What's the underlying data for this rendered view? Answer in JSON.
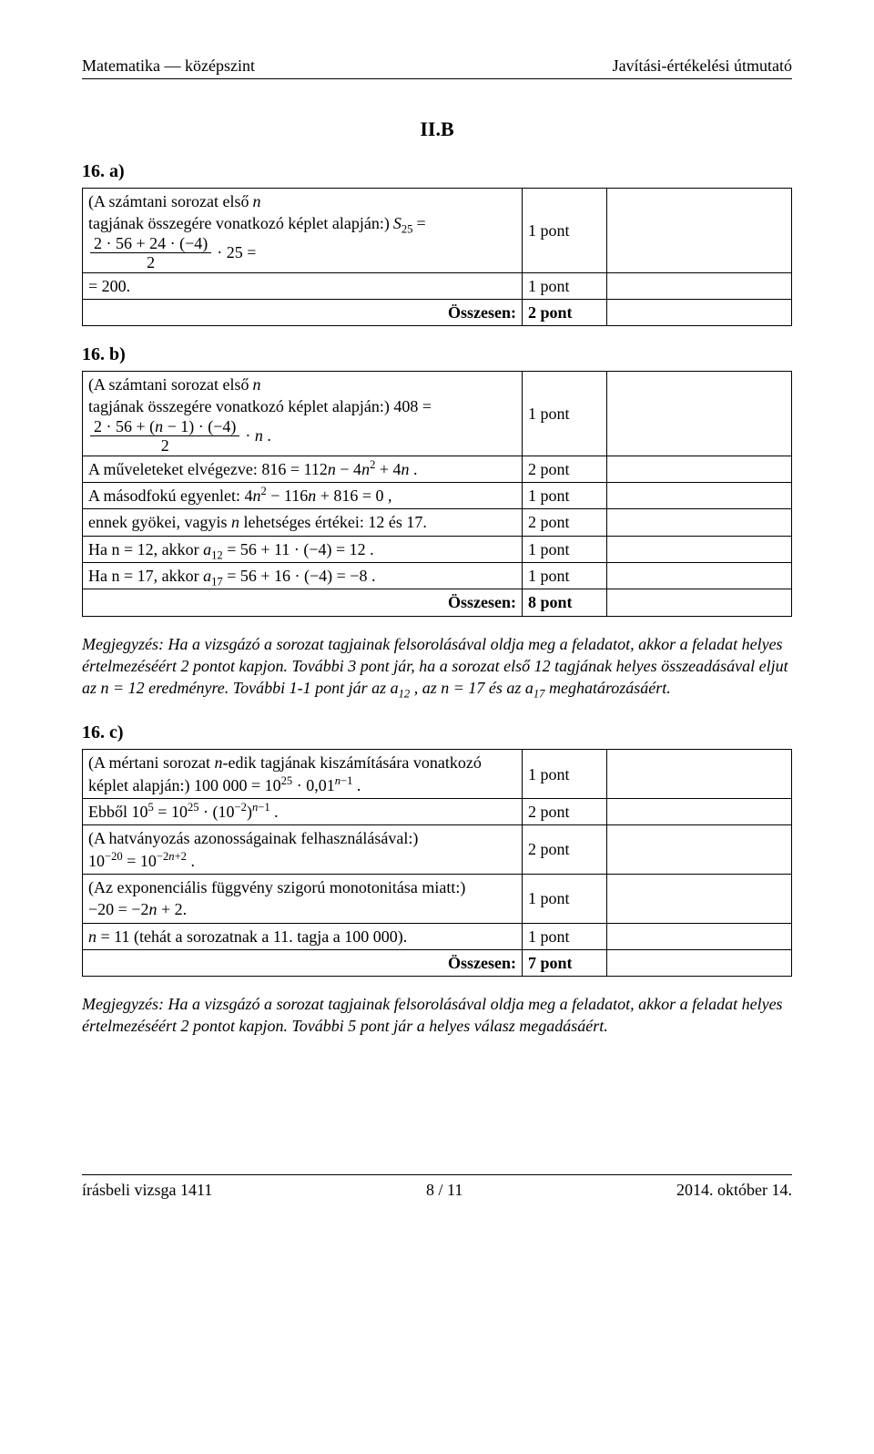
{
  "header": {
    "left": "Matematika — középszint",
    "right": "Javítási-értékelési útmutató"
  },
  "sectionLabel": "II.B",
  "tasks": {
    "a": {
      "heading": "16. a)",
      "rows": [
        {
          "c2": "1 pont"
        },
        {
          "c1": "= 200.",
          "c2": "1 pont"
        },
        {
          "c1": "Összesen:",
          "c2": "2 pont",
          "right": true,
          "bold2": true
        }
      ],
      "r0_prefix": "(A számtani sorozat első ",
      "r0_n": "n",
      "r0_mid": " tagjának összegére vonatkozó képlet alapján:) ",
      "r0_s25": "S",
      "r0_eq": " = ",
      "r0_num": "2 · 56 + 24 · (−4)",
      "r0_den": "2",
      "r0_tail": " · 25 ="
    },
    "b": {
      "heading": "16. b)",
      "r0_prefix": "(A számtani sorozat első ",
      "r0_n": "n",
      "r0_mid": " tagjának összegére vonatkozó képlet alapján:) 408 = ",
      "r0_num": "2 · 56 + (n − 1) · (−4)",
      "r0_den": "2",
      "r0_tail": " · n .",
      "r1": "A műveleteket elvégezve: 816 = 112n − 4n² + 4n .",
      "r2": "A másodfokú egyenlet: 4n² − 116n + 816 = 0 ,",
      "r3": "ennek gyökei, vagyis n lehetséges értékei: 12 és 17.",
      "r4_pre": "Ha n = 12, akkor ",
      "r4_a": "a",
      "r4_tail": " = 56 + 11 · (−4) = 12 .",
      "r5_pre": "Ha n = 17, akkor ",
      "r5_a": "a",
      "r5_tail": " = 56 + 16 · (−4) = −8 .",
      "r_total": "Összesen:",
      "pts": {
        "p1": "1 pont",
        "p2": "2 pont",
        "p3": "1 pont",
        "p4": "2 pont",
        "p5": "1 pont",
        "p6": "1 pont",
        "pt": "8 pont"
      },
      "note": "Megjegyzés: Ha a vizsgázó a sorozat tagjainak felsorolásával oldja meg a feladatot, akkor a feladat helyes értelmezéséért 2 pontot kapjon. További 3 pont jár, ha a sorozat első 12 tagjának helyes összeadásával eljut az n = 12 eredményre. További 1-1 pont jár az a₁₂ , az n = 17 és az a₁₇ meghatározásáért."
    },
    "c": {
      "heading": "16. c)",
      "r0_pre": "(A mértani sorozat ",
      "r0_n": "n",
      "r0_mid": "-edik tagjának kiszámítására vonatkozó képlet alapján:) 100 000 = 10",
      "r0_exp1": "25",
      "r0_mid2": " · 0,01",
      "r0_exp2": "n−1",
      "r0_end": " .",
      "r1_pre": "Ebből 10",
      "r1_e1": "5",
      "r1_mid": " = 10",
      "r1_e2": "25",
      "r1_mid2": " · (10",
      "r1_e3": "−2",
      "r1_mid3": ")",
      "r1_e4": "n−1",
      "r1_end": " .",
      "r2_pre": "(A hatványozás azonosságainak felhasználásával:)",
      "r2_l2a": "10",
      "r2_e1": "−20",
      "r2_m": " = 10",
      "r2_e2": "−2n+2",
      "r2_end": " .",
      "r3": "(Az exponenciális függvény szigorú monotonitása miatt:)",
      "r3b": "−20 = −2n + 2.",
      "r4": "n = 11 (tehát a sorozatnak a 11. tagja a 100 000).",
      "r_total": "Összesen:",
      "pts": {
        "p1": "1 pont",
        "p2": "2 pont",
        "p3": "2 pont",
        "p4": "1 pont",
        "p5": "1 pont",
        "pt": "7 pont"
      },
      "note": "Megjegyzés: Ha a vizsgázó a sorozat tagjainak felsorolásával oldja meg a feladatot, akkor a feladat helyes értelmezéséért 2 pontot kapjon. További 5 pont jár a helyes válasz megadásáért."
    }
  },
  "footer": {
    "left": "írásbeli vizsga 1411",
    "center": "8 / 11",
    "right": "2014. október 14."
  }
}
